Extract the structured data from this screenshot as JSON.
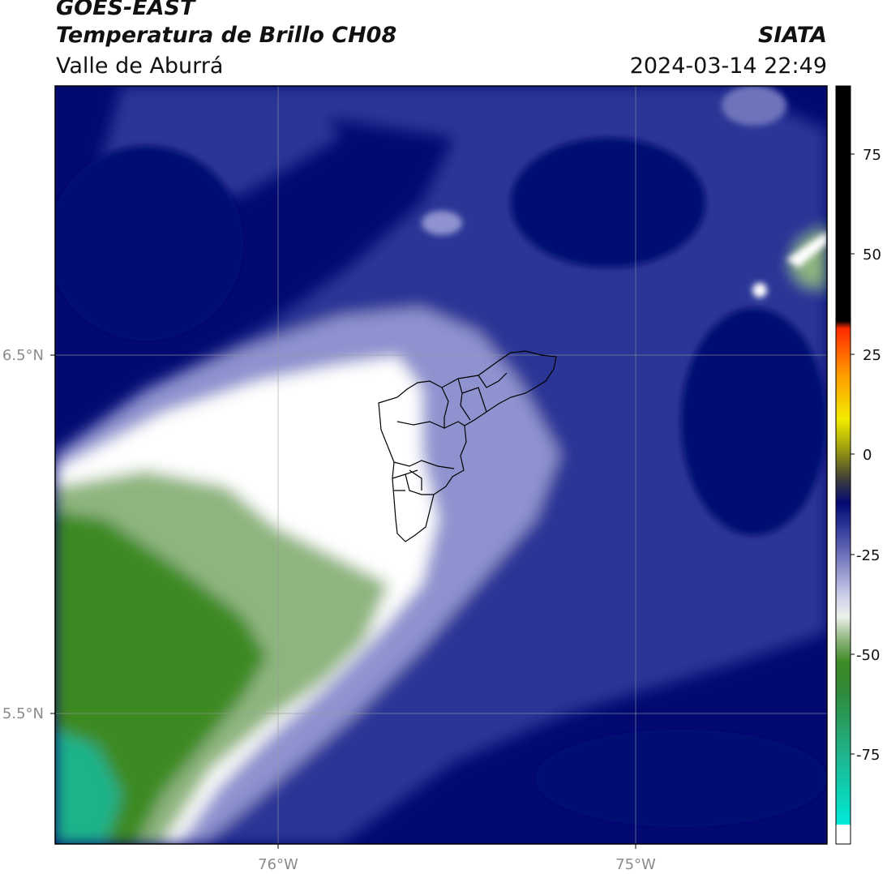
{
  "header": {
    "satellite": "GOES-EAST",
    "product": "Temperatura de Brillo CH08",
    "region": "Valle de Aburrá",
    "brand": "SIATA",
    "datetime": "2024-03-14 22:49"
  },
  "map": {
    "lat_ticks": [
      "6.5°N",
      "5.5°N"
    ],
    "lon_ticks": [
      "76°W",
      "75°W"
    ],
    "colors": {
      "navy": "#020a72",
      "blue_mid": "#2c3596",
      "lavender": "#8e93cf",
      "white": "#ffffff",
      "green_light": "#8fb57f",
      "green_dark": "#3d8a24",
      "teal": "#1fb38a",
      "black": "#000000",
      "red": "#ff2a00",
      "orange": "#ff9a00",
      "yellow": "#f2ec00",
      "cyan": "#00ead8"
    }
  },
  "colorbar": {
    "labels": [
      "75",
      "50",
      "25",
      "0",
      "-25",
      "-50",
      "-75"
    ]
  }
}
